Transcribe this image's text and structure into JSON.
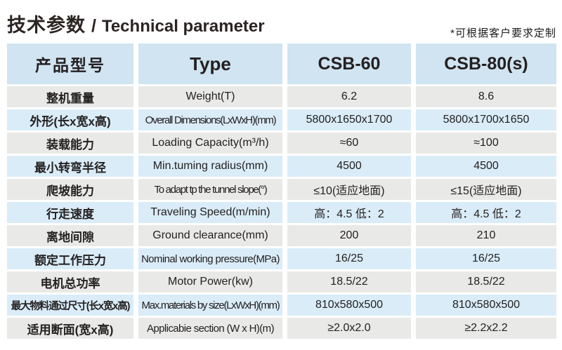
{
  "page": {
    "title_cn": "技术参数",
    "title_separator": "/",
    "title_en": "Technical parameter",
    "note": "*可根据客户要求定制"
  },
  "colors": {
    "header_bg": "#d0e4f1",
    "row_blue_bg": "#d9ecf8",
    "row_gray_bg": "#e9e9e7",
    "text": "#242021",
    "background": "#ffffff"
  },
  "table": {
    "header": {
      "product_model_cn": "产品型号",
      "type_label": "Type",
      "model_1": "CSB-60",
      "model_2": "CSB-80(s)"
    },
    "rows": [
      {
        "cn": "整机重量",
        "en": "Weight(T)",
        "v1": "6.2",
        "v2": "8.6"
      },
      {
        "cn": "外形(长x宽x高)",
        "en": "Overall Dimensions(LxWxH)(mm)",
        "v1": "5800x1650x1700",
        "v2": "5800x1700x1650"
      },
      {
        "cn": "装载能力",
        "en": "Loading Capacity(m³/h)",
        "v1": "≈60",
        "v2": "≈100"
      },
      {
        "cn": "最小转弯半径",
        "en": "Min.tuming radius(mm)",
        "v1": "4500",
        "v2": "4500"
      },
      {
        "cn": "爬坡能力",
        "en": "To adapt tp the tunnel slope(°)",
        "v1": "≤10(适应地面)",
        "v2": "≤15(适应地面)"
      },
      {
        "cn": "行走速度",
        "en": "Traveling Speed(m/min)",
        "v1": "高：4.5 低：2",
        "v2": "高：4.5 低：2"
      },
      {
        "cn": "离地间隙",
        "en": "Ground clearance(mm)",
        "v1": "200",
        "v2": "210"
      },
      {
        "cn": "额定工作压力",
        "en": "Nominal working pressure(MPa)",
        "v1": "16/25",
        "v2": "16/25"
      },
      {
        "cn": "电机总功率",
        "en": "Motor Power(kw)",
        "v1": "18.5/22",
        "v2": "18.5/22"
      },
      {
        "cn": "最大物料通过尺寸(长x宽x高)",
        "en": "Max.materials by size(LxWxH)(mm)",
        "v1": "810x580x500",
        "v2": "810x580x500"
      },
      {
        "cn": "适用断面(宽x高)",
        "en": "Applicabie section (W x H)(m)",
        "v1": "≥2.0x2.0",
        "v2": "≥2.2x2.2"
      }
    ]
  }
}
